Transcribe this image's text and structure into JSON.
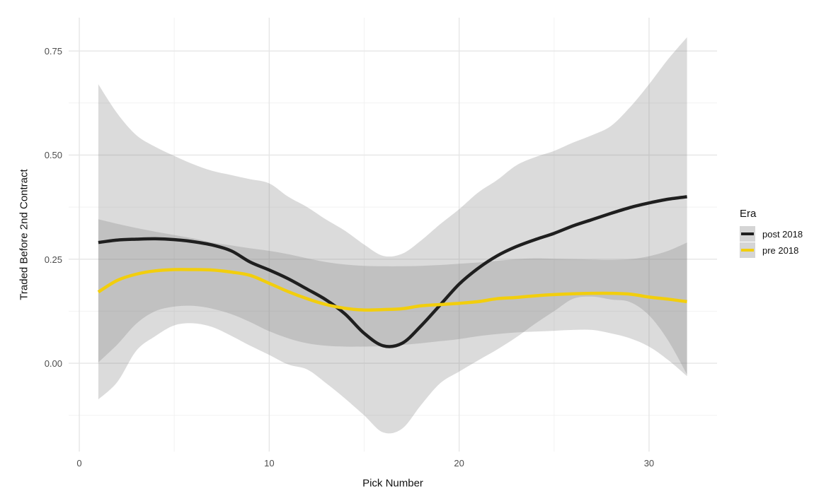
{
  "chart_data": {
    "type": "line",
    "title": "",
    "xlabel": "Pick Number",
    "ylabel": "Traded Before 2nd Contract",
    "xlim": [
      -0.56,
      33.58
    ],
    "ylim": [
      -0.212,
      0.83
    ],
    "x_major_ticks": [
      0,
      10,
      20,
      30
    ],
    "x_major_tick_labels": [
      "0",
      "10",
      "20",
      "30"
    ],
    "x_minor_ticks": [
      5,
      15,
      25
    ],
    "y_major_ticks": [
      0,
      0.25,
      0.5,
      0.75
    ],
    "y_major_tick_labels": [
      "0.00",
      "0.25",
      "0.50",
      "0.75"
    ],
    "y_minor_ticks": [
      -0.125,
      0.125,
      0.375,
      0.625
    ],
    "grid": "major+minor, white panel, ggplot-style",
    "x": [
      1,
      2,
      3,
      4,
      5,
      6,
      7,
      8,
      9,
      10,
      11,
      12,
      13,
      14,
      15,
      16,
      17,
      18,
      19,
      20,
      21,
      22,
      23,
      24,
      25,
      26,
      27,
      28,
      29,
      30,
      31,
      32
    ],
    "series": [
      {
        "name": "post 2018",
        "color": "#1F1F1F",
        "values": [
          0.29,
          0.296,
          0.298,
          0.299,
          0.297,
          0.292,
          0.284,
          0.27,
          0.243,
          0.224,
          0.203,
          0.178,
          0.152,
          0.118,
          0.072,
          0.042,
          0.048,
          0.09,
          0.14,
          0.19,
          0.228,
          0.258,
          0.28,
          0.297,
          0.312,
          0.33,
          0.345,
          0.36,
          0.374,
          0.385,
          0.394,
          0.4
        ],
        "ribbon_upper": [
          0.67,
          0.6,
          0.548,
          0.52,
          0.498,
          0.478,
          0.462,
          0.452,
          0.442,
          0.432,
          0.4,
          0.375,
          0.345,
          0.318,
          0.285,
          0.258,
          0.263,
          0.295,
          0.334,
          0.37,
          0.41,
          0.44,
          0.475,
          0.495,
          0.51,
          0.53,
          0.548,
          0.57,
          0.615,
          0.67,
          0.73,
          0.783
        ],
        "ribbon_lower": [
          -0.087,
          -0.045,
          0.03,
          0.065,
          0.091,
          0.096,
          0.087,
          0.066,
          0.042,
          0.02,
          -0.003,
          -0.015,
          -0.048,
          -0.085,
          -0.125,
          -0.166,
          -0.157,
          -0.1,
          -0.048,
          -0.02,
          0.007,
          0.033,
          0.062,
          0.095,
          0.125,
          0.155,
          0.16,
          0.153,
          0.147,
          0.115,
          0.055,
          -0.027
        ]
      },
      {
        "name": "pre 2018",
        "color": "#F2CE0D",
        "values": [
          0.171,
          0.199,
          0.214,
          0.222,
          0.225,
          0.225,
          0.224,
          0.219,
          0.211,
          0.192,
          0.172,
          0.155,
          0.141,
          0.132,
          0.128,
          0.129,
          0.131,
          0.138,
          0.141,
          0.144,
          0.148,
          0.155,
          0.158,
          0.162,
          0.165,
          0.167,
          0.168,
          0.168,
          0.166,
          0.159,
          0.154,
          0.148
        ],
        "ribbon_upper": [
          0.346,
          0.335,
          0.325,
          0.316,
          0.308,
          0.3,
          0.29,
          0.283,
          0.276,
          0.27,
          0.262,
          0.252,
          0.243,
          0.237,
          0.234,
          0.233,
          0.233,
          0.234,
          0.236,
          0.239,
          0.242,
          0.246,
          0.25,
          0.252,
          0.251,
          0.25,
          0.249,
          0.248,
          0.25,
          0.257,
          0.27,
          0.29
        ],
        "ribbon_lower": [
          0.002,
          0.045,
          0.095,
          0.125,
          0.136,
          0.138,
          0.131,
          0.118,
          0.099,
          0.077,
          0.06,
          0.048,
          0.042,
          0.04,
          0.04,
          0.041,
          0.044,
          0.048,
          0.053,
          0.058,
          0.065,
          0.07,
          0.074,
          0.076,
          0.078,
          0.08,
          0.08,
          0.072,
          0.06,
          0.04,
          0.008,
          -0.031
        ]
      }
    ],
    "legend": {
      "title": "Era",
      "position": "right",
      "entries": [
        {
          "label": "post 2018",
          "color": "#1F1F1F"
        },
        {
          "label": "pre 2018",
          "color": "#F2CE0D"
        }
      ]
    }
  },
  "colors": {
    "background": "#FFFFFF",
    "ribbon_fill": "rgba(127,127,127,0.28)",
    "grid_major": "#E6E6E6",
    "grid_minor": "#F2F2F2",
    "tick_label": "#4D4D4D",
    "axis_title": "#111111",
    "legend_key_fill": "#D5D5D5"
  }
}
